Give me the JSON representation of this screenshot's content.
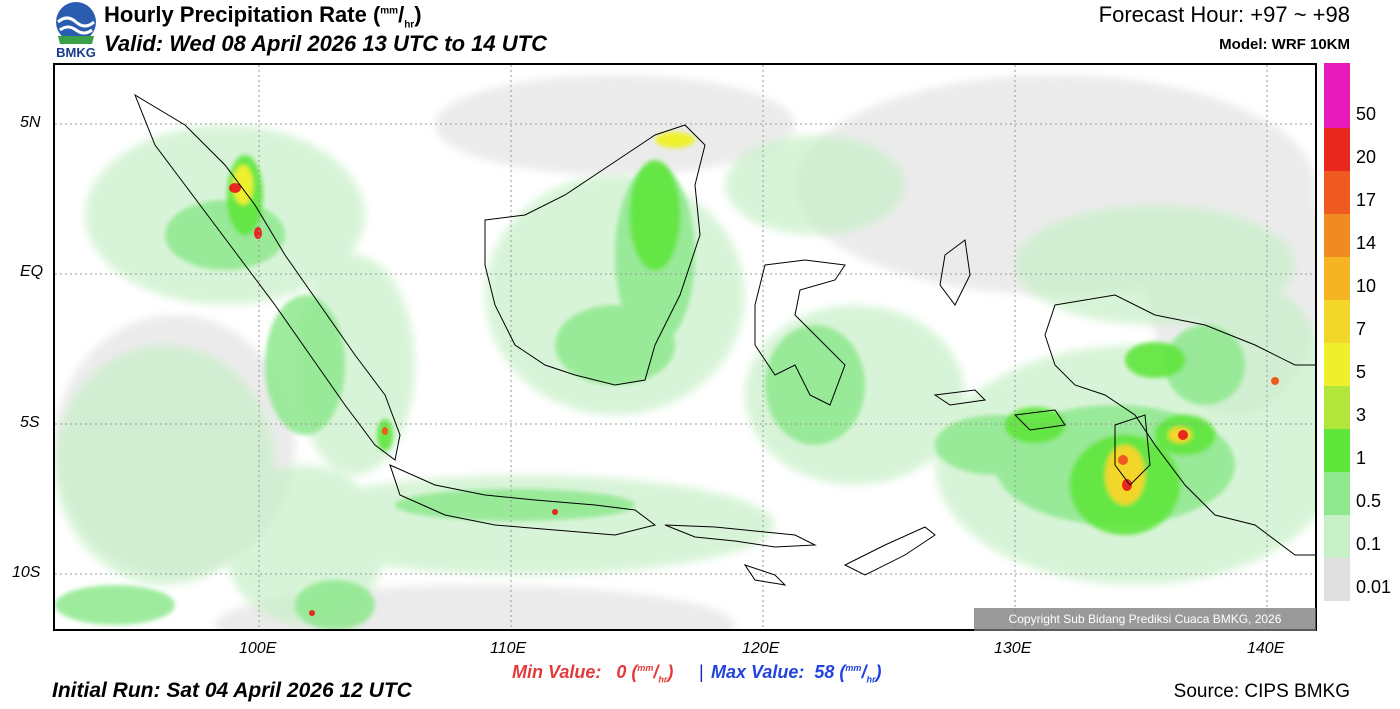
{
  "header": {
    "title_main": "Hourly Precipitation Rate (",
    "title_unit_num": "mm",
    "title_unit_sep": "/",
    "title_unit_den": "hr",
    "title_close": ")",
    "valid": "Valid: Wed 08 April 2026 13 UTC to 14 UTC",
    "forecast_hour": "Forecast Hour: +97 ~ +98",
    "model": "Model: WRF 10KM"
  },
  "logo": {
    "text": "BMKG",
    "icon": "bmkg-logo"
  },
  "axes": {
    "y_labels": [
      "5N",
      "EQ",
      "5S",
      "10S"
    ],
    "x_labels": [
      "100E",
      "110E",
      "120E",
      "130E",
      "140E"
    ]
  },
  "colorbar": {
    "labels": [
      "50",
      "20",
      "17",
      "14",
      "10",
      "7",
      "5",
      "3",
      "1",
      "0.5",
      "0.1",
      "0.01"
    ],
    "colors": [
      "#e61ab8",
      "#e8281e",
      "#ee5a20",
      "#f08a22",
      "#f4b424",
      "#f3d62a",
      "#eef02e",
      "#b3e63a",
      "#5ee63a",
      "#8ee88e",
      "#c8f0c8",
      "#e0e0e0"
    ]
  },
  "footer": {
    "min_label": "Min Value:",
    "min_value": "0",
    "max_label": "Max Value:",
    "max_value": "58",
    "separator": "|",
    "unit_num": "mm",
    "unit_den": "hr",
    "initial_run": "Initial Run: Sat 04 April 2026 12 UTC",
    "source": "Source: CIPS BMKG",
    "copyright": "Copyright Sub Bidang Prediksi Cuaca BMKG, 2026"
  }
}
